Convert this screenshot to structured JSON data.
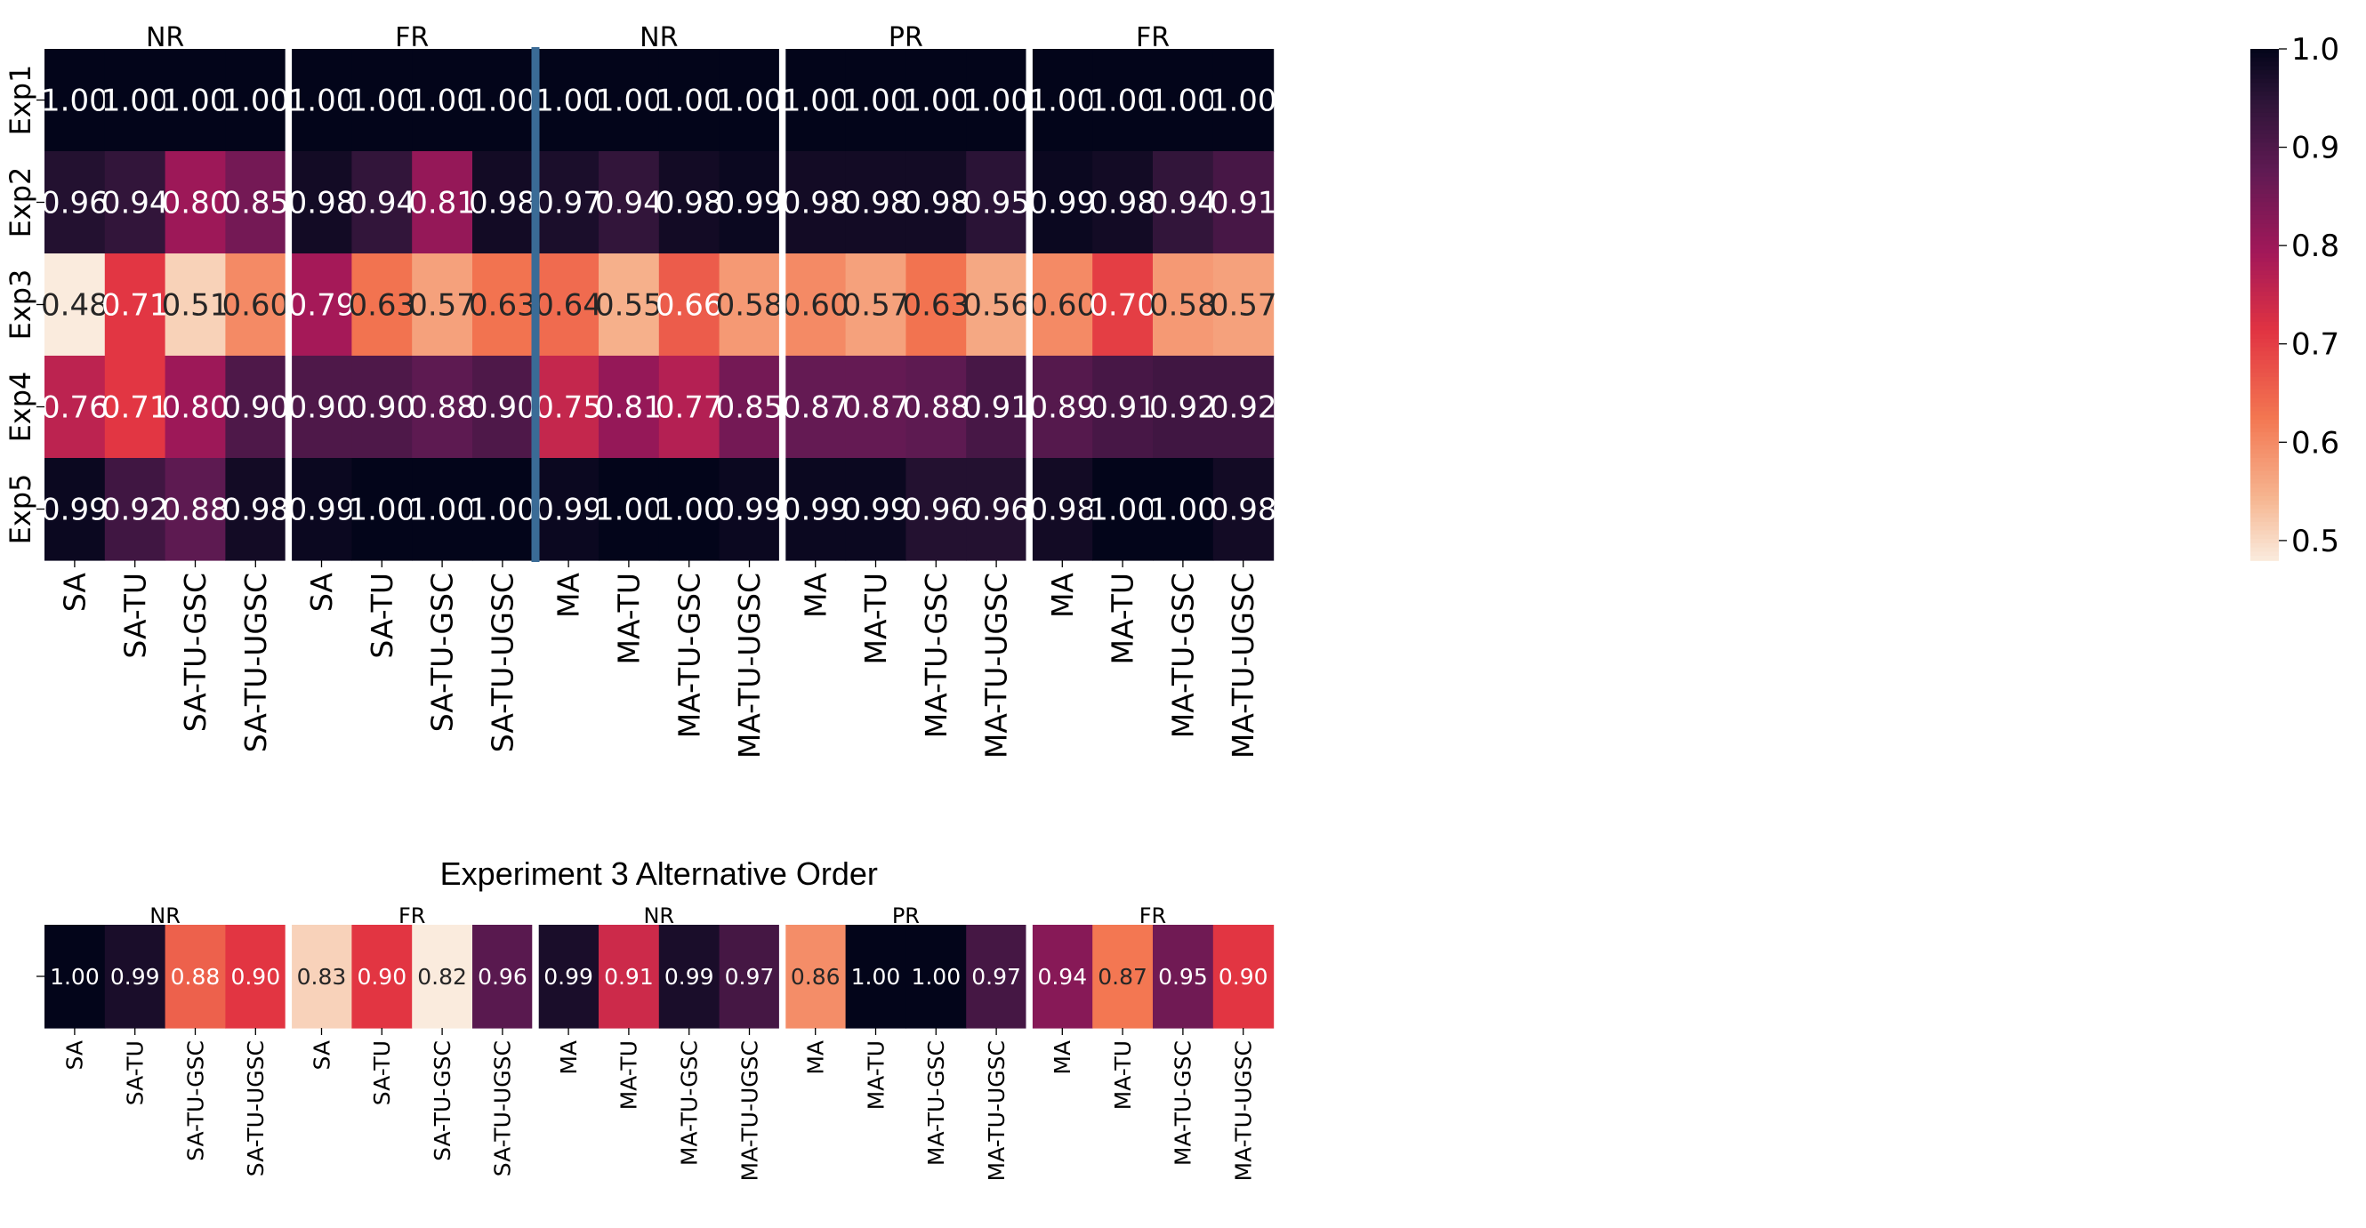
{
  "chart_data": [
    {
      "type": "heatmap",
      "title": "",
      "row_labels": [
        "Exp1",
        "Exp2",
        "Exp3",
        "Exp4",
        "Exp5"
      ],
      "colorbar": {
        "min": 0.48,
        "max": 1.0,
        "ticks": [
          "1.0",
          "0.9",
          "0.8",
          "0.7",
          "0.6",
          "0.5"
        ]
      },
      "groups": [
        {
          "name": "NR",
          "columns": [
            "SA",
            "SA-TU",
            "SA-TU-GSC",
            "SA-TU-UGSC"
          ],
          "values": [
            [
              1.0,
              1.0,
              1.0,
              1.0
            ],
            [
              0.96,
              0.94,
              0.8,
              0.85
            ],
            [
              0.48,
              0.71,
              0.51,
              0.6
            ],
            [
              0.76,
              0.71,
              0.8,
              0.9
            ],
            [
              0.99,
              0.92,
              0.88,
              0.98
            ]
          ]
        },
        {
          "name": "FR",
          "columns": [
            "SA",
            "SA-TU",
            "SA-TU-GSC",
            "SA-TU-UGSC"
          ],
          "values": [
            [
              1.0,
              1.0,
              1.0,
              1.0
            ],
            [
              0.98,
              0.94,
              0.81,
              0.98
            ],
            [
              0.79,
              0.63,
              0.57,
              0.63
            ],
            [
              0.9,
              0.9,
              0.88,
              0.9
            ],
            [
              0.99,
              1.0,
              1.0,
              1.0
            ]
          ]
        },
        {
          "name": "NR",
          "columns": [
            "MA",
            "MA-TU",
            "MA-TU-GSC",
            "MA-TU-UGSC"
          ],
          "values": [
            [
              1.0,
              1.0,
              1.0,
              1.0
            ],
            [
              0.97,
              0.94,
              0.98,
              0.99
            ],
            [
              0.64,
              0.55,
              0.66,
              0.58
            ],
            [
              0.75,
              0.81,
              0.77,
              0.85
            ],
            [
              0.99,
              1.0,
              1.0,
              0.99
            ]
          ]
        },
        {
          "name": "PR",
          "columns": [
            "MA",
            "MA-TU",
            "MA-TU-GSC",
            "MA-TU-UGSC"
          ],
          "values": [
            [
              1.0,
              1.0,
              1.0,
              1.0
            ],
            [
              0.98,
              0.98,
              0.98,
              0.95
            ],
            [
              0.6,
              0.57,
              0.63,
              0.56
            ],
            [
              0.87,
              0.87,
              0.88,
              0.91
            ],
            [
              0.99,
              0.99,
              0.96,
              0.96
            ]
          ]
        },
        {
          "name": "FR",
          "columns": [
            "MA",
            "MA-TU",
            "MA-TU-GSC",
            "MA-TU-UGSC"
          ],
          "values": [
            [
              1.0,
              1.0,
              1.0,
              1.0
            ],
            [
              0.99,
              0.98,
              0.94,
              0.91
            ],
            [
              0.6,
              0.7,
              0.58,
              0.57
            ],
            [
              0.89,
              0.91,
              0.92,
              0.92
            ],
            [
              0.98,
              1.0,
              1.0,
              0.98
            ]
          ]
        }
      ]
    },
    {
      "type": "heatmap",
      "title": "Experiment 3 Alternative Order",
      "row_labels": [
        ""
      ],
      "colorbar": {
        "min": 0.82,
        "max": 1.0
      },
      "groups": [
        {
          "name": "NR",
          "columns": [
            "SA",
            "SA-TU",
            "SA-TU-GSC",
            "SA-TU-UGSC"
          ],
          "values": [
            [
              1.0,
              0.99,
              0.88,
              0.9
            ]
          ]
        },
        {
          "name": "FR",
          "columns": [
            "SA",
            "SA-TU",
            "SA-TU-GSC",
            "SA-TU-UGSC"
          ],
          "values": [
            [
              0.83,
              0.9,
              0.82,
              0.96
            ]
          ]
        },
        {
          "name": "NR",
          "columns": [
            "MA",
            "MA-TU",
            "MA-TU-GSC",
            "MA-TU-UGSC"
          ],
          "values": [
            [
              0.99,
              0.91,
              0.99,
              0.97
            ]
          ]
        },
        {
          "name": "PR",
          "columns": [
            "MA",
            "MA-TU",
            "MA-TU-GSC",
            "MA-TU-UGSC"
          ],
          "values": [
            [
              0.86,
              1.0,
              1.0,
              0.97
            ]
          ]
        },
        {
          "name": "FR",
          "columns": [
            "MA",
            "MA-TU",
            "MA-TU-GSC",
            "MA-TU-UGSC"
          ],
          "values": [
            [
              0.94,
              0.87,
              0.95,
              0.9
            ]
          ]
        }
      ]
    }
  ]
}
